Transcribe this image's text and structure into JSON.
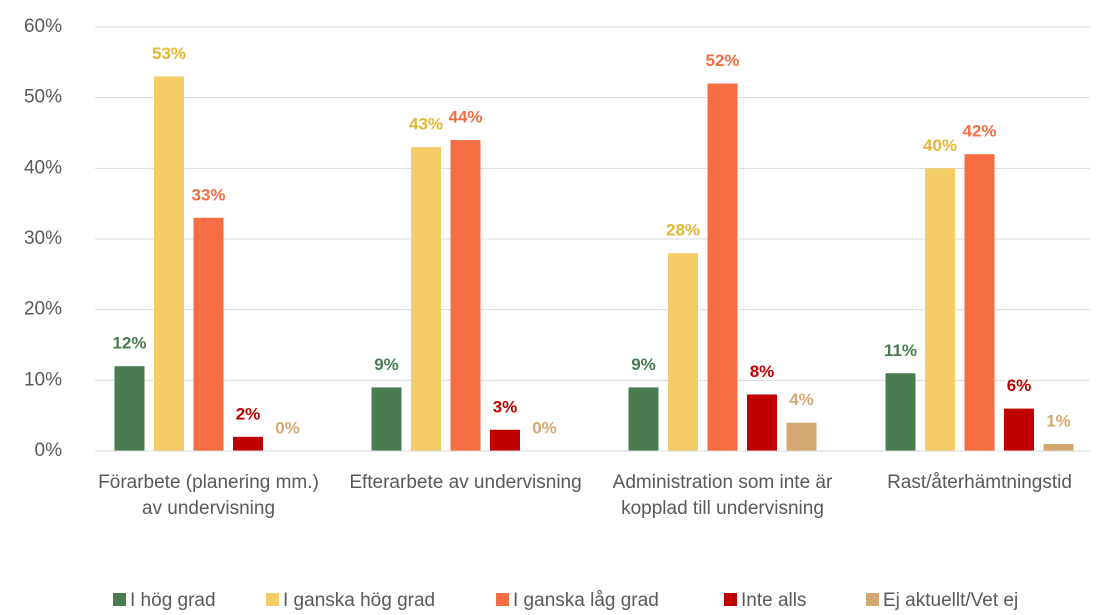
{
  "chart_data": {
    "type": "bar",
    "categories": [
      "Förarbete (planering mm.) av undervisning",
      "Efterarbete av undervisning",
      "Administration som inte är kopplad till undervisning",
      "Rast/återhämtningstid"
    ],
    "series": [
      {
        "name": "I hög grad",
        "color": "#4a7c52",
        "values": [
          12,
          9,
          9,
          11
        ],
        "value_labels": [
          "12%",
          "9%",
          "9%",
          "11%"
        ]
      },
      {
        "name": "I ganska hög grad",
        "color": "#f5cd67",
        "values": [
          53,
          43,
          28,
          40
        ],
        "value_labels": [
          "53%",
          "43%",
          "28%",
          "40%"
        ]
      },
      {
        "name": "I ganska låg grad",
        "color": "#f66d44",
        "values": [
          33,
          44,
          52,
          42
        ],
        "value_labels": [
          "33%",
          "44%",
          "52%",
          "42%"
        ]
      },
      {
        "name": "Inte alls",
        "color": "#c00000",
        "values": [
          2,
          3,
          8,
          6
        ],
        "value_labels": [
          "2%",
          "3%",
          "8%",
          "6%"
        ]
      },
      {
        "name": "Ej aktuellt/Vet ej",
        "color": "#d4a871",
        "values": [
          0,
          0,
          4,
          1
        ],
        "value_labels": [
          "0%",
          "0%",
          "4%",
          "1%"
        ]
      }
    ],
    "ylim": [
      0,
      60
    ],
    "yticks": [
      {
        "value": 0,
        "label": "0%"
      },
      {
        "value": 10,
        "label": "10%"
      },
      {
        "value": 20,
        "label": "20%"
      },
      {
        "value": 30,
        "label": "30%"
      },
      {
        "value": 40,
        "label": "40%"
      },
      {
        "value": 50,
        "label": "50%"
      },
      {
        "value": 60,
        "label": "60%"
      }
    ],
    "grid": true,
    "legend": "bottom"
  }
}
